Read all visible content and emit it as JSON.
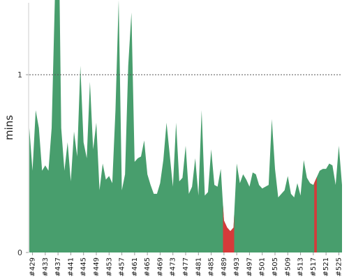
{
  "colors": {
    "normal": "#489e6d",
    "highlight": "#d63a3a",
    "gridline": "#555555",
    "axis": "#cccccc"
  },
  "chart_data": {
    "type": "area",
    "ylabel": "mins",
    "ylim": [
      0,
      1.42
    ],
    "yticks": [
      0,
      1
    ],
    "xtick_labels": [
      "#429",
      "#433",
      "#437",
      "#441",
      "#445",
      "#449",
      "#453",
      "#457",
      "#461",
      "#465",
      "#469",
      "#473",
      "#477",
      "#481",
      "#485",
      "#489",
      "#493",
      "#497",
      "#501",
      "#505",
      "#509",
      "#513",
      "#517",
      "#521",
      "#525"
    ],
    "xtick_values": [
      429,
      433,
      437,
      441,
      445,
      449,
      453,
      457,
      461,
      465,
      469,
      473,
      477,
      481,
      485,
      489,
      493,
      497,
      501,
      505,
      509,
      513,
      517,
      521,
      525
    ],
    "xlim": [
      428,
      526
    ],
    "grid": "dashed horizontal line at y = 1",
    "series": [
      {
        "x": [
          428,
          429,
          430,
          431,
          432,
          433,
          434,
          435,
          436,
          436.5,
          437,
          437.5,
          438,
          439,
          440,
          441,
          442,
          443,
          444,
          445,
          446,
          447,
          448,
          449,
          450,
          451,
          452,
          453,
          454,
          455,
          456,
          457,
          458,
          459,
          460,
          461,
          462,
          463,
          464,
          465,
          466,
          467,
          468,
          469,
          470,
          471,
          472,
          473,
          474,
          475,
          476,
          477,
          478,
          479,
          480,
          481,
          482,
          483,
          484,
          485,
          486,
          487,
          488,
          489,
          490,
          491,
          492,
          493,
          494,
          495,
          496,
          497,
          498,
          499,
          500,
          501,
          502,
          503,
          504,
          505,
          506,
          507,
          508,
          509,
          510,
          511,
          512,
          513,
          514,
          515,
          516,
          517,
          518,
          519,
          520,
          521,
          522,
          523,
          524,
          525,
          526
        ],
        "values": [
          0.7,
          0.46,
          0.8,
          0.7,
          0.46,
          0.49,
          0.46,
          0.7,
          1.42,
          1.42,
          1.42,
          1.42,
          0.7,
          0.46,
          0.62,
          0.4,
          0.68,
          0.54,
          1.05,
          0.62,
          0.53,
          0.96,
          0.58,
          0.73,
          0.35,
          0.5,
          0.41,
          0.43,
          0.39,
          0.8,
          1.42,
          0.35,
          0.44,
          1.05,
          1.35,
          0.51,
          0.53,
          0.54,
          0.63,
          0.44,
          0.38,
          0.33,
          0.33,
          0.39,
          0.52,
          0.73,
          0.55,
          0.37,
          0.73,
          0.4,
          0.42,
          0.6,
          0.33,
          0.37,
          0.53,
          0.32,
          0.8,
          0.32,
          0.34,
          0.58,
          0.38,
          0.37,
          0.47,
          0.18,
          0.14,
          0.12,
          0.14,
          0.5,
          0.39,
          0.44,
          0.41,
          0.37,
          0.45,
          0.44,
          0.38,
          0.36,
          0.37,
          0.38,
          0.75,
          0.47,
          0.31,
          0.33,
          0.35,
          0.43,
          0.33,
          0.31,
          0.39,
          0.32,
          0.52,
          0.42,
          0.39,
          0.38,
          0.42,
          0.46,
          0.47,
          0.47,
          0.5,
          0.49,
          0.38,
          0.6,
          0.38
        ]
      }
    ],
    "highlight_ranges": [
      [
        488.7,
        492.2
      ],
      [
        517.3,
        518.1
      ]
    ]
  }
}
